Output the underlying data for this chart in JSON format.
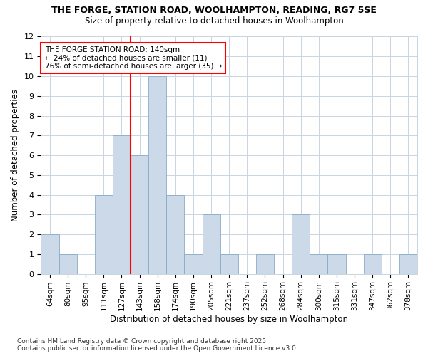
{
  "title1": "THE FORGE, STATION ROAD, WOOLHAMPTON, READING, RG7 5SE",
  "title2": "Size of property relative to detached houses in Woolhampton",
  "xlabel": "Distribution of detached houses by size in Woolhampton",
  "ylabel": "Number of detached properties",
  "categories": [
    "64sqm",
    "80sqm",
    "95sqm",
    "111sqm",
    "127sqm",
    "143sqm",
    "158sqm",
    "174sqm",
    "190sqm",
    "205sqm",
    "221sqm",
    "237sqm",
    "252sqm",
    "268sqm",
    "284sqm",
    "300sqm",
    "315sqm",
    "331sqm",
    "347sqm",
    "362sqm",
    "378sqm"
  ],
  "values": [
    2,
    1,
    0,
    4,
    7,
    6,
    10,
    4,
    1,
    3,
    1,
    0,
    1,
    0,
    3,
    1,
    1,
    0,
    1,
    0,
    1
  ],
  "bar_color": "#ccd9e8",
  "bar_edge_color": "#8aaac8",
  "vline_index": 5,
  "vline_color": "red",
  "annotation_text": "THE FORGE STATION ROAD: 140sqm\n← 24% of detached houses are smaller (11)\n76% of semi-detached houses are larger (35) →",
  "annotation_box_color": "white",
  "annotation_box_edge": "red",
  "ylim": [
    0,
    12
  ],
  "yticks": [
    0,
    1,
    2,
    3,
    4,
    5,
    6,
    7,
    8,
    9,
    10,
    11,
    12
  ],
  "footer": "Contains HM Land Registry data © Crown copyright and database right 2025.\nContains public sector information licensed under the Open Government Licence v3.0.",
  "bg_color": "#ffffff",
  "plot_bg_color": "#ffffff",
  "grid_color": "#c8d4e0"
}
